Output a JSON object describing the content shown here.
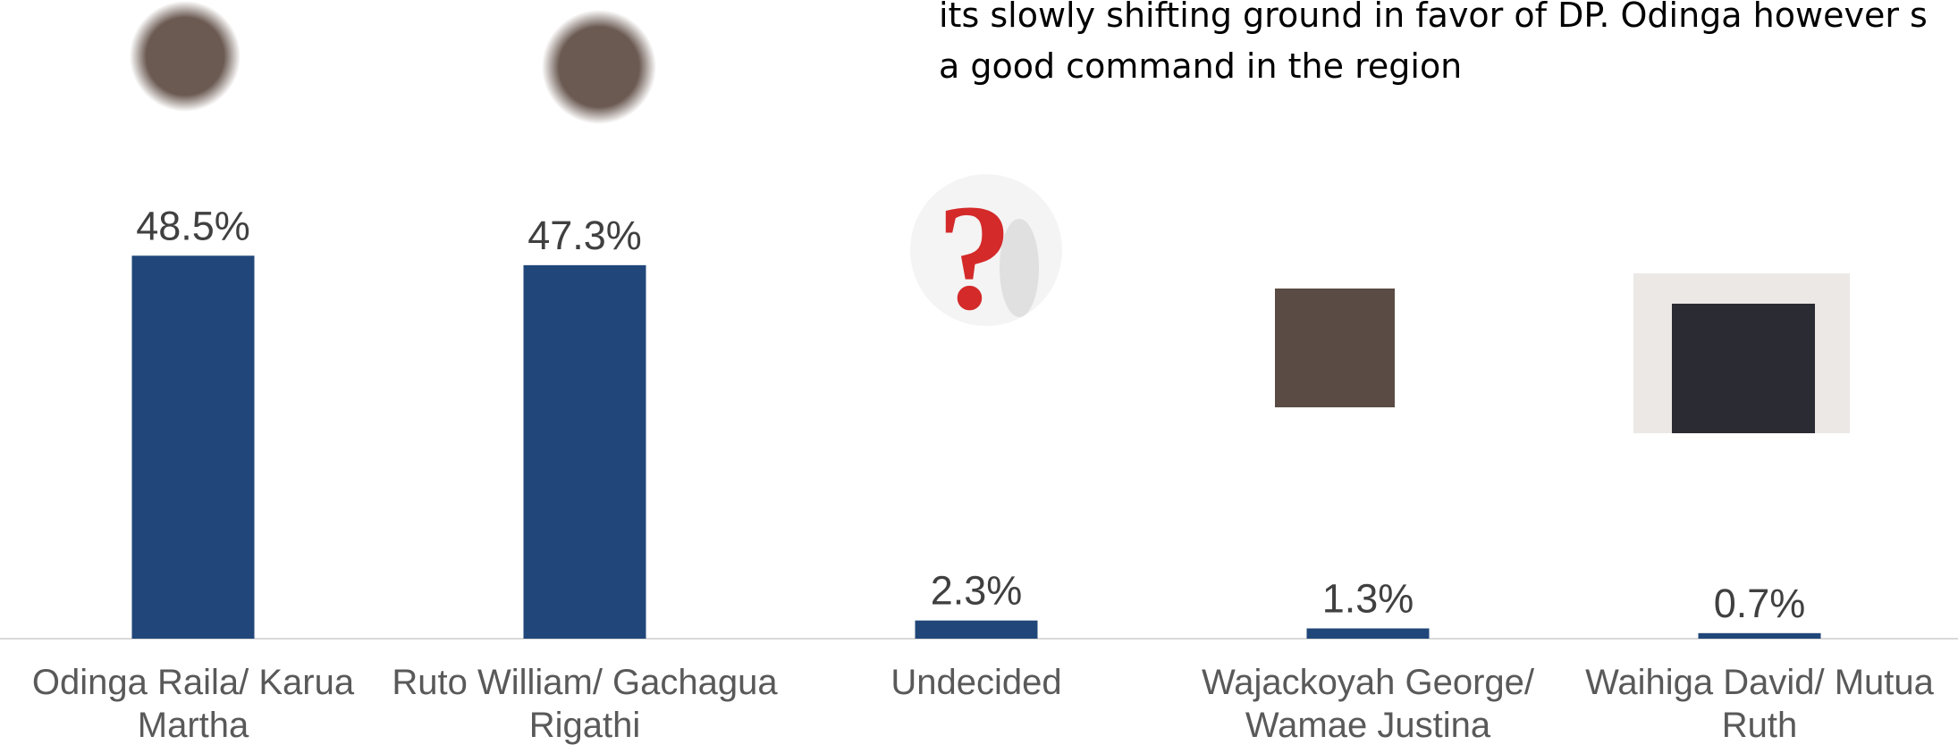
{
  "chart_data": {
    "type": "bar",
    "annotation_lines": [
      "its  slowly shifting ground in favor of DP. Odinga however s",
      "a good  command  in the region"
    ],
    "categories": [
      "Odinga Raila/ Karua Martha",
      "Ruto William/ Gachagua Rigathi",
      "Undecided",
      "Wajackoyah George/ Wamae Justina",
      "Waihiga David/ Mutua Ruth"
    ],
    "values": [
      48.5,
      47.3,
      2.3,
      1.3,
      0.7
    ],
    "value_labels": [
      "48.5%",
      "47.3%",
      "2.3%",
      "1.3%",
      "0.7%"
    ],
    "color": "#21477a"
  }
}
